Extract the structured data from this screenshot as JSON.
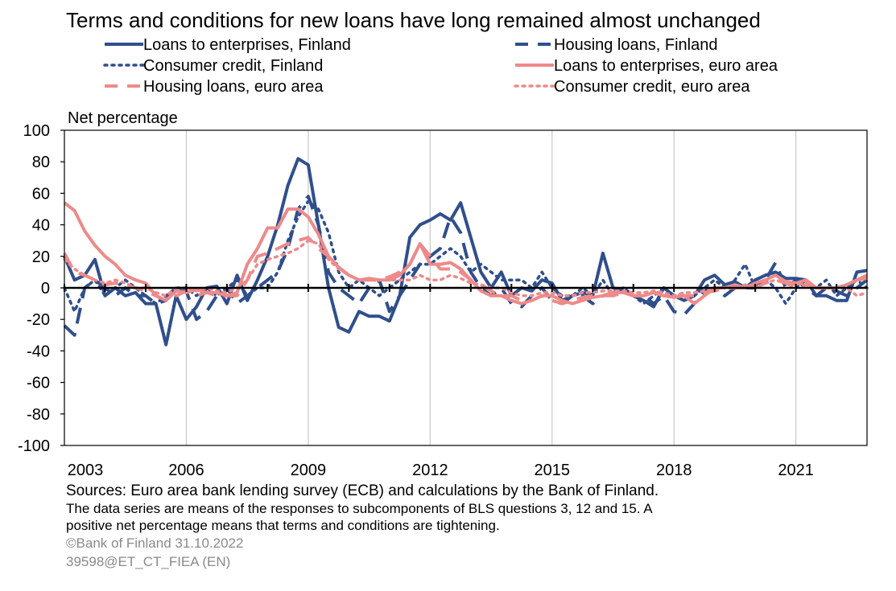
{
  "chart_data": {
    "type": "line",
    "title": "Terms and conditions for new loans have long remained almost unchanged",
    "ylabel": "Net percentage",
    "xlabel": "",
    "ylim": [
      -100,
      100
    ],
    "yticks": [
      100,
      80,
      60,
      40,
      20,
      0,
      -20,
      -40,
      -60,
      -80,
      -100
    ],
    "xlim": [
      2003,
      2022.75
    ],
    "xticks": [
      2003,
      2006,
      2009,
      2012,
      2015,
      2018,
      2021
    ],
    "grid": "vertical",
    "legend_position": "top",
    "series": [
      {
        "name": "Loans to enterprises, Finland",
        "color": "#2f4f8c",
        "dash": "solid",
        "width": 4,
        "x": [
          2003.0,
          2003.25,
          2003.5,
          2003.75,
          2004.0,
          2004.25,
          2004.5,
          2004.75,
          2005.0,
          2005.25,
          2005.5,
          2005.75,
          2006.0,
          2006.25,
          2006.5,
          2006.75,
          2007.0,
          2007.25,
          2007.5,
          2007.75,
          2008.0,
          2008.25,
          2008.5,
          2008.75,
          2009.0,
          2009.25,
          2009.5,
          2009.75,
          2010.0,
          2010.25,
          2010.5,
          2010.75,
          2011.0,
          2011.25,
          2011.5,
          2011.75,
          2012.0,
          2012.25,
          2012.5,
          2012.75,
          2013.0,
          2013.25,
          2013.5,
          2013.75,
          2014.0,
          2014.25,
          2014.5,
          2014.75,
          2015.0,
          2015.25,
          2015.5,
          2015.75,
          2016.0,
          2016.25,
          2016.5,
          2016.75,
          2017.0,
          2017.25,
          2017.5,
          2017.75,
          2018.0,
          2018.25,
          2018.5,
          2018.75,
          2019.0,
          2019.25,
          2019.5,
          2019.75,
          2020.0,
          2020.25,
          2020.5,
          2020.75,
          2021.0,
          2021.25,
          2021.5,
          2021.75,
          2022.0,
          2022.25,
          2022.5,
          2022.75
        ],
        "y": [
          20,
          5,
          8,
          18,
          -5,
          0,
          -5,
          -3,
          -10,
          -10,
          -36,
          -5,
          -20,
          -12,
          0,
          1,
          -10,
          8,
          -8,
          5,
          20,
          40,
          65,
          82,
          78,
          40,
          0,
          -25,
          -28,
          -15,
          -18,
          -18,
          -21,
          -5,
          32,
          40,
          43,
          47,
          43,
          54,
          32,
          10,
          0,
          10,
          -5,
          0,
          -2,
          5,
          3,
          -8,
          -5,
          -3,
          -5,
          22,
          0,
          -2,
          -5,
          -8,
          -12,
          0,
          -5,
          -8,
          -5,
          5,
          8,
          2,
          4,
          0,
          5,
          8,
          10,
          6,
          6,
          5,
          -5,
          -5,
          -8,
          -8,
          10,
          11
        ]
      },
      {
        "name": "Housing loans, Finland",
        "color": "#2f4f8c",
        "dash": "long",
        "width": 4,
        "x": [
          2003.0,
          2003.25,
          2003.5,
          2003.75,
          2004.0,
          2004.25,
          2004.5,
          2004.75,
          2005.0,
          2005.25,
          2005.5,
          2005.75,
          2006.0,
          2006.25,
          2006.5,
          2006.75,
          2007.0,
          2007.25,
          2007.5,
          2007.75,
          2008.0,
          2008.25,
          2008.5,
          2008.75,
          2009.0,
          2009.25,
          2009.5,
          2009.75,
          2010.0,
          2010.25,
          2010.5,
          2010.75,
          2011.0,
          2011.25,
          2011.5,
          2011.75,
          2012.0,
          2012.25,
          2012.5,
          2012.75,
          2013.0,
          2013.25,
          2013.5,
          2013.75,
          2014.0,
          2014.25,
          2014.5,
          2014.75,
          2015.0,
          2015.25,
          2015.5,
          2015.75,
          2016.0,
          2016.25,
          2016.5,
          2016.75,
          2017.0,
          2017.25,
          2017.5,
          2017.75,
          2018.0,
          2018.25,
          2018.5,
          2018.75,
          2019.0,
          2019.25,
          2019.5,
          2019.75,
          2020.0,
          2020.25,
          2020.5,
          2020.75,
          2021.0,
          2021.25,
          2021.5,
          2021.75,
          2022.0,
          2022.25,
          2022.5,
          2022.75
        ],
        "y": [
          -24,
          -30,
          0,
          5,
          0,
          -5,
          0,
          -5,
          -5,
          -10,
          -8,
          0,
          -2,
          -20,
          -15,
          -5,
          0,
          -10,
          -5,
          0,
          5,
          10,
          25,
          50,
          58,
          40,
          10,
          0,
          -5,
          -10,
          0,
          5,
          -15,
          -5,
          5,
          15,
          20,
          25,
          45,
          35,
          10,
          0,
          -5,
          0,
          -10,
          -12,
          -5,
          0,
          -8,
          -10,
          -5,
          -5,
          -10,
          -5,
          -3,
          0,
          -5,
          -5,
          -10,
          -5,
          -15,
          -17,
          -10,
          -2,
          0,
          -5,
          0,
          0,
          0,
          5,
          16,
          0,
          5,
          0,
          -5,
          0,
          -2,
          -5,
          0,
          5
        ]
      },
      {
        "name": "Consumer credit, Finland",
        "color": "#2f4f8c",
        "dash": "dot",
        "width": 3.5,
        "x": [
          2003.0,
          2003.25,
          2003.5,
          2003.75,
          2004.0,
          2004.25,
          2004.5,
          2004.75,
          2005.0,
          2005.25,
          2005.5,
          2005.75,
          2006.0,
          2006.25,
          2006.5,
          2006.75,
          2007.0,
          2007.25,
          2007.5,
          2007.75,
          2008.0,
          2008.25,
          2008.5,
          2008.75,
          2009.0,
          2009.25,
          2009.5,
          2009.75,
          2010.0,
          2010.25,
          2010.5,
          2010.75,
          2011.0,
          2011.25,
          2011.5,
          2011.75,
          2012.0,
          2012.25,
          2012.5,
          2012.75,
          2013.0,
          2013.25,
          2013.5,
          2013.75,
          2014.0,
          2014.25,
          2014.5,
          2014.75,
          2015.0,
          2015.25,
          2015.5,
          2015.75,
          2016.0,
          2016.25,
          2016.5,
          2016.75,
          2017.0,
          2017.25,
          2017.5,
          2017.75,
          2018.0,
          2018.25,
          2018.5,
          2018.75,
          2019.0,
          2019.25,
          2019.5,
          2019.75,
          2020.0,
          2020.25,
          2020.5,
          2020.75,
          2021.0,
          2021.25,
          2021.5,
          2021.75,
          2022.0,
          2022.25,
          2022.5,
          2022.75
        ],
        "y": [
          0,
          -15,
          0,
          5,
          -5,
          0,
          5,
          0,
          -5,
          -10,
          -5,
          0,
          0,
          -5,
          0,
          -5,
          0,
          5,
          -5,
          0,
          0,
          10,
          30,
          45,
          55,
          50,
          35,
          10,
          0,
          5,
          0,
          -5,
          0,
          5,
          10,
          15,
          15,
          20,
          25,
          20,
          10,
          15,
          10,
          5,
          5,
          5,
          0,
          10,
          0,
          -5,
          -5,
          0,
          -5,
          5,
          -5,
          0,
          -5,
          -10,
          -5,
          0,
          -5,
          -5,
          -5,
          0,
          5,
          0,
          5,
          15,
          0,
          5,
          0,
          -10,
          0,
          5,
          0,
          5,
          -5,
          0,
          5,
          0
        ]
      },
      {
        "name": "Loans to enterprises, euro area",
        "color": "#ee8a8a",
        "dash": "solid",
        "width": 4,
        "x": [
          2003.0,
          2003.25,
          2003.5,
          2003.75,
          2004.0,
          2004.25,
          2004.5,
          2004.75,
          2005.0,
          2005.25,
          2005.5,
          2005.75,
          2006.0,
          2006.25,
          2006.5,
          2006.75,
          2007.0,
          2007.25,
          2007.5,
          2007.75,
          2008.0,
          2008.25,
          2008.5,
          2008.75,
          2009.0,
          2009.25,
          2009.5,
          2009.75,
          2010.0,
          2010.25,
          2010.5,
          2010.75,
          2011.0,
          2011.25,
          2011.5,
          2011.75,
          2012.0,
          2012.25,
          2012.5,
          2012.75,
          2013.0,
          2013.25,
          2013.5,
          2013.75,
          2014.0,
          2014.25,
          2014.5,
          2014.75,
          2015.0,
          2015.25,
          2015.5,
          2015.75,
          2016.0,
          2016.25,
          2016.5,
          2016.75,
          2017.0,
          2017.25,
          2017.5,
          2017.75,
          2018.0,
          2018.25,
          2018.5,
          2018.75,
          2019.0,
          2019.25,
          2019.5,
          2019.75,
          2020.0,
          2020.25,
          2020.5,
          2020.75,
          2021.0,
          2021.25,
          2021.5,
          2021.75,
          2022.0,
          2022.25,
          2022.5,
          2022.75
        ],
        "y": [
          54,
          49,
          36,
          27,
          20,
          15,
          8,
          5,
          3,
          -5,
          -8,
          -2,
          -3,
          -1,
          -3,
          -3,
          -5,
          -3,
          15,
          25,
          38,
          38,
          50,
          50,
          45,
          34,
          20,
          13,
          8,
          5,
          6,
          5,
          5,
          8,
          15,
          28,
          15,
          15,
          16,
          12,
          5,
          -2,
          -5,
          -5,
          -8,
          -10,
          -8,
          -5,
          -5,
          -8,
          -10,
          -8,
          -6,
          -5,
          -3,
          -3,
          -5,
          -5,
          -3,
          -5,
          -6,
          -5,
          -10,
          -5,
          0,
          0,
          2,
          0,
          3,
          5,
          8,
          4,
          3,
          5,
          0,
          0,
          0,
          2,
          5,
          8
        ]
      },
      {
        "name": "Housing loans, euro area",
        "color": "#ee8a8a",
        "dash": "long",
        "width": 4,
        "x": [
          2003.0,
          2003.25,
          2003.5,
          2003.75,
          2004.0,
          2004.25,
          2004.5,
          2004.75,
          2005.0,
          2005.25,
          2005.5,
          2005.75,
          2006.0,
          2006.25,
          2006.5,
          2006.75,
          2007.0,
          2007.25,
          2007.5,
          2007.75,
          2008.0,
          2008.25,
          2008.5,
          2008.75,
          2009.0,
          2009.25,
          2009.5,
          2009.75,
          2010.0,
          2010.25,
          2010.5,
          2010.75,
          2011.0,
          2011.25,
          2011.5,
          2011.75,
          2012.0,
          2012.25,
          2012.5,
          2012.75,
          2013.0,
          2013.25,
          2013.5,
          2013.75,
          2014.0,
          2014.25,
          2014.5,
          2014.75,
          2015.0,
          2015.25,
          2015.5,
          2015.75,
          2016.0,
          2016.25,
          2016.5,
          2016.75,
          2017.0,
          2017.25,
          2017.5,
          2017.75,
          2018.0,
          2018.25,
          2018.5,
          2018.75,
          2019.0,
          2019.25,
          2019.5,
          2019.75,
          2020.0,
          2020.25,
          2020.5,
          2020.75,
          2021.0,
          2021.25,
          2021.5,
          2021.75,
          2022.0,
          2022.25,
          2022.5,
          2022.75
        ],
        "y": [
          22,
          10,
          8,
          5,
          2,
          3,
          2,
          0,
          -2,
          -5,
          -8,
          -5,
          -2,
          -5,
          -3,
          -5,
          -5,
          -5,
          5,
          20,
          22,
          25,
          28,
          30,
          32,
          25,
          20,
          13,
          8,
          5,
          5,
          5,
          7,
          10,
          15,
          28,
          20,
          12,
          12,
          10,
          5,
          2,
          -2,
          -5,
          -5,
          -8,
          -8,
          -5,
          -8,
          -10,
          -8,
          -6,
          -5,
          -5,
          -5,
          -3,
          -5,
          -5,
          -3,
          -5,
          -5,
          -5,
          -5,
          -3,
          -2,
          0,
          0,
          0,
          0,
          3,
          5,
          3,
          0,
          2,
          0,
          0,
          0,
          2,
          5,
          6
        ]
      },
      {
        "name": "Consumer credit, euro area",
        "color": "#ee8a8a",
        "dash": "dot",
        "width": 3.5,
        "x": [
          2003.0,
          2003.25,
          2003.5,
          2003.75,
          2004.0,
          2004.25,
          2004.5,
          2004.75,
          2005.0,
          2005.25,
          2005.5,
          2005.75,
          2006.0,
          2006.25,
          2006.5,
          2006.75,
          2007.0,
          2007.25,
          2007.5,
          2007.75,
          2008.0,
          2008.25,
          2008.5,
          2008.75,
          2009.0,
          2009.25,
          2009.5,
          2009.75,
          2010.0,
          2010.25,
          2010.5,
          2010.75,
          2011.0,
          2011.25,
          2011.5,
          2011.75,
          2012.0,
          2012.25,
          2012.5,
          2012.75,
          2013.0,
          2013.25,
          2013.5,
          2013.75,
          2014.0,
          2014.25,
          2014.5,
          2014.75,
          2015.0,
          2015.25,
          2015.5,
          2015.75,
          2016.0,
          2016.25,
          2016.5,
          2016.75,
          2017.0,
          2017.25,
          2017.5,
          2017.75,
          2018.0,
          2018.25,
          2018.5,
          2018.75,
          2019.0,
          2019.25,
          2019.5,
          2019.75,
          2020.0,
          2020.25,
          2020.5,
          2020.75,
          2021.0,
          2021.25,
          2021.5,
          2021.75,
          2022.0,
          2022.25,
          2022.5,
          2022.75
        ],
        "y": [
          18,
          12,
          8,
          5,
          3,
          5,
          3,
          0,
          0,
          -3,
          -5,
          0,
          0,
          -2,
          0,
          -2,
          -3,
          0,
          5,
          15,
          18,
          20,
          22,
          25,
          30,
          28,
          18,
          12,
          8,
          5,
          5,
          5,
          5,
          5,
          5,
          8,
          5,
          5,
          8,
          6,
          3,
          2,
          0,
          0,
          -3,
          -5,
          -5,
          -3,
          -3,
          -5,
          -5,
          -3,
          -3,
          -2,
          -2,
          -2,
          -3,
          -3,
          -2,
          -3,
          -5,
          -3,
          -3,
          -2,
          0,
          0,
          0,
          2,
          0,
          3,
          5,
          3,
          2,
          3,
          0,
          0,
          0,
          0,
          -5,
          -3
        ]
      }
    ]
  },
  "footer": {
    "sources": "Sources: Euro area bank lending survey (ECB) and calculations by the Bank of Finland.",
    "note_line1": "The data series are means of the responses to subcomponents of BLS questions 3, 12 and 15. A",
    "note_line2": "positive net percentage means that terms and conditions are tightening.",
    "copyright": "©Bank of Finland 31.10.2022",
    "code": "39598@ET_CT_FIEA (EN)"
  }
}
